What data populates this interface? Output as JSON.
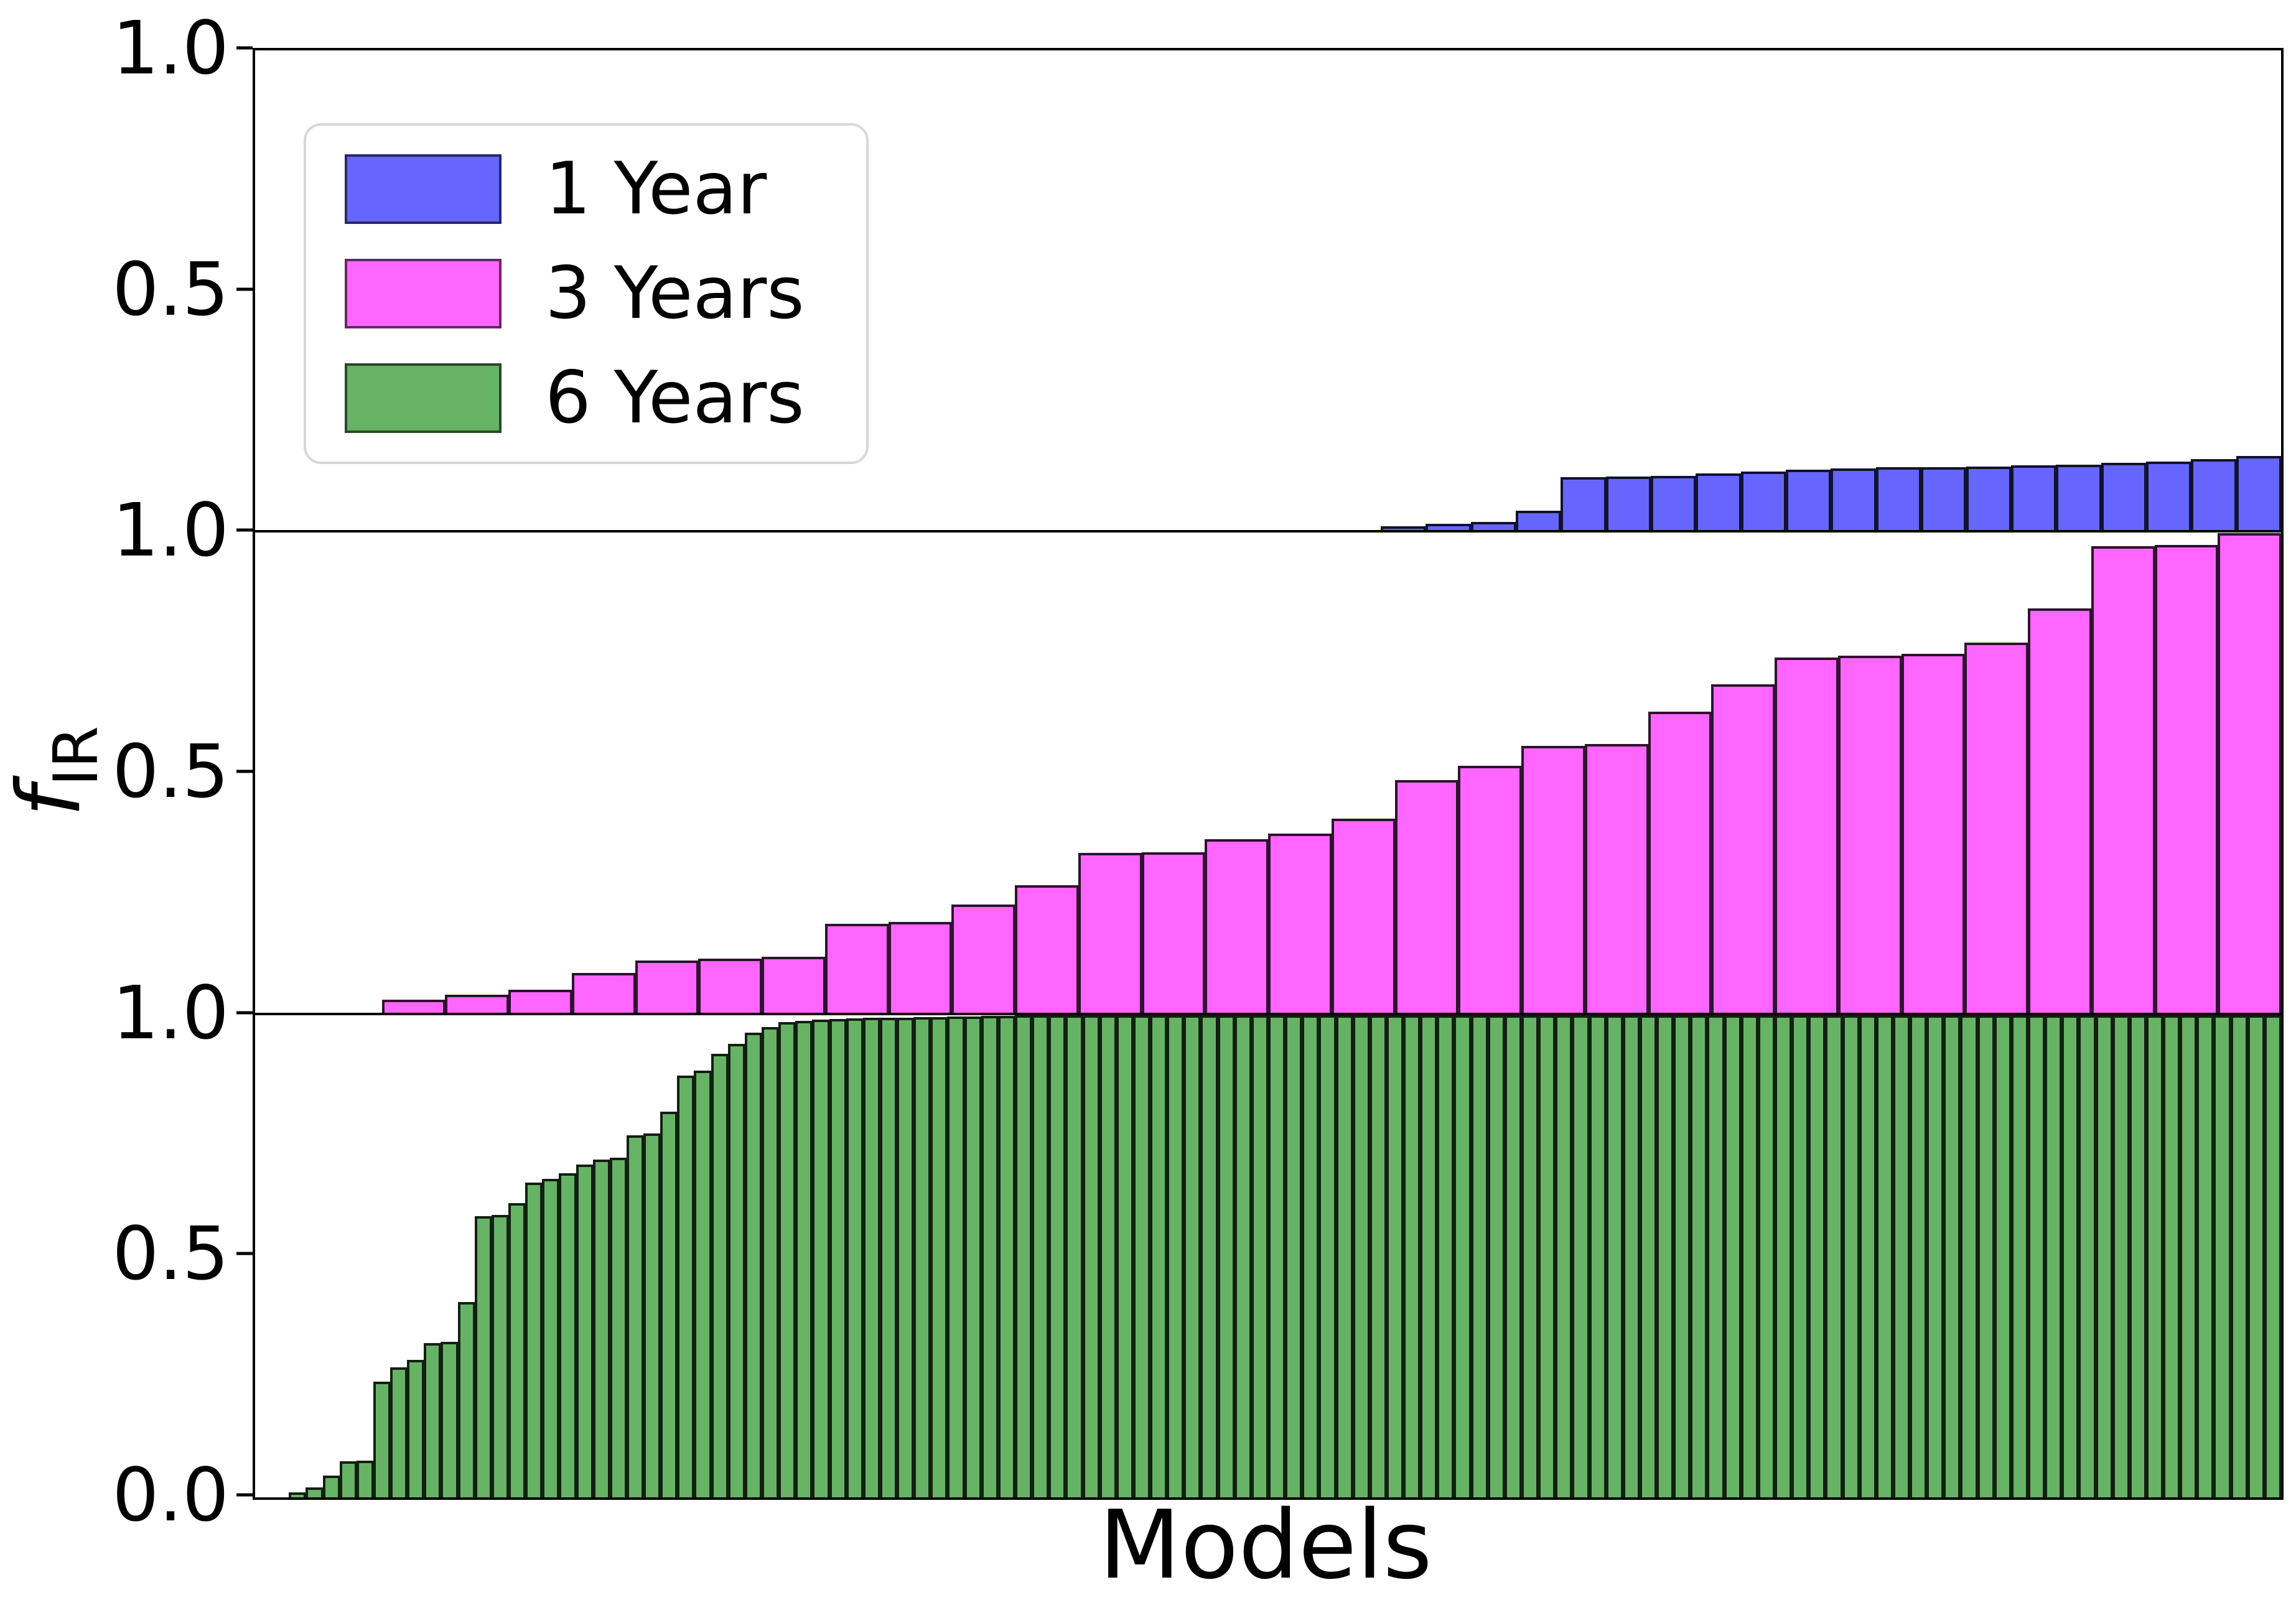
{
  "figure": {
    "xlabel": "Models",
    "ylabel_main": "f",
    "ylabel_sub": "IR"
  },
  "axes": {
    "y_ticks": [
      {
        "label": "1.0",
        "pos": 0.0
      },
      {
        "label": "0.5",
        "pos": 0.16667
      },
      {
        "label": "1.0",
        "pos": 0.33333
      },
      {
        "label": "0.5",
        "pos": 0.5
      },
      {
        "label": "1.0",
        "pos": 0.66667
      },
      {
        "label": "0.5",
        "pos": 0.83333
      },
      {
        "label": "0.0",
        "pos": 1.0
      }
    ]
  },
  "legend": {
    "items": [
      {
        "label": "1 Year",
        "color": "#6666ff"
      },
      {
        "label": "3 Years",
        "color": "#ff66ff"
      },
      {
        "label": "6 Years",
        "color": "#66b366"
      }
    ]
  },
  "chart_data": {
    "type": "bar",
    "title": "",
    "xlabel": "Models",
    "ylabel": "f_IR",
    "ylim": [
      0,
      1
    ],
    "grid": false,
    "legend_position": "upper left",
    "layout": "three stacked panels sharing x-axis, bars sorted ascending, no x tick labels",
    "panels": [
      {
        "series": "1-year",
        "legend_label": "1 Year",
        "color": "#6666ff",
        "edge_color": "rgba(0,0,0,0.82)",
        "values": [
          0,
          0,
          0,
          0,
          0,
          0,
          0,
          0,
          0,
          0,
          0,
          0,
          0,
          0,
          0,
          0,
          0,
          0,
          0,
          0,
          0,
          0,
          0,
          0,
          0,
          0.013,
          0.018,
          0.022,
          0.045,
          0.115,
          0.116,
          0.118,
          0.122,
          0.126,
          0.13,
          0.133,
          0.135,
          0.136,
          0.137,
          0.139,
          0.141,
          0.144,
          0.147,
          0.152,
          0.158
        ]
      },
      {
        "series": "3-years",
        "legend_label": "3 Years",
        "color": "#ff66ff",
        "edge_color": "rgba(0,0,0,0.82)",
        "values": [
          0,
          0,
          0.032,
          0.043,
          0.053,
          0.088,
          0.114,
          0.118,
          0.121,
          0.19,
          0.193,
          0.23,
          0.27,
          0.336,
          0.338,
          0.365,
          0.376,
          0.407,
          0.488,
          0.517,
          0.559,
          0.562,
          0.63,
          0.686,
          0.742,
          0.745,
          0.749,
          0.772,
          0.843,
          0.972,
          0.975,
          1.0
        ]
      },
      {
        "series": "6-years",
        "legend_label": "6 Years",
        "color": "#66b366",
        "edge_color": "rgba(0,0,0,0.82)",
        "values": [
          0,
          0,
          0.01,
          0.02,
          0.045,
          0.075,
          0.076,
          0.24,
          0.27,
          0.285,
          0.32,
          0.322,
          0.405,
          0.583,
          0.586,
          0.61,
          0.652,
          0.66,
          0.672,
          0.69,
          0.7,
          0.704,
          0.75,
          0.755,
          0.8,
          0.875,
          0.885,
          0.92,
          0.94,
          0.963,
          0.975,
          0.985,
          0.988,
          0.99,
          0.992,
          0.993,
          0.994,
          0.995,
          0.995,
          0.996,
          0.996,
          0.997,
          0.997,
          0.998,
          0.998,
          0.999,
          1.0,
          1.0,
          1.0,
          1.0,
          1.0,
          1.0,
          1.0,
          1.0,
          1.0,
          1.0,
          1.0,
          1.0,
          1.0,
          1.0,
          1.0,
          1.0,
          1.0,
          1.0,
          1.0,
          1.0,
          1.0,
          1.0,
          1.0,
          1.0,
          1.0,
          1.0,
          1.0,
          1.0,
          1.0,
          1.0,
          1.0,
          1.0,
          1.0,
          1.0,
          1.0,
          1.0,
          1.0,
          1.0,
          1.0,
          1.0,
          1.0,
          1.0,
          1.0,
          1.0,
          1.0,
          1.0,
          1.0,
          1.0,
          1.0,
          1.0,
          1.0,
          1.0,
          1.0,
          1.0,
          1.0,
          1.0,
          1.0,
          1.0,
          1.0,
          1.0,
          1.0,
          1.0,
          1.0,
          1.0,
          1.0,
          1.0,
          1.0,
          1.0,
          1.0,
          1.0,
          1.0,
          1.0,
          1.0,
          1.0
        ]
      }
    ]
  }
}
